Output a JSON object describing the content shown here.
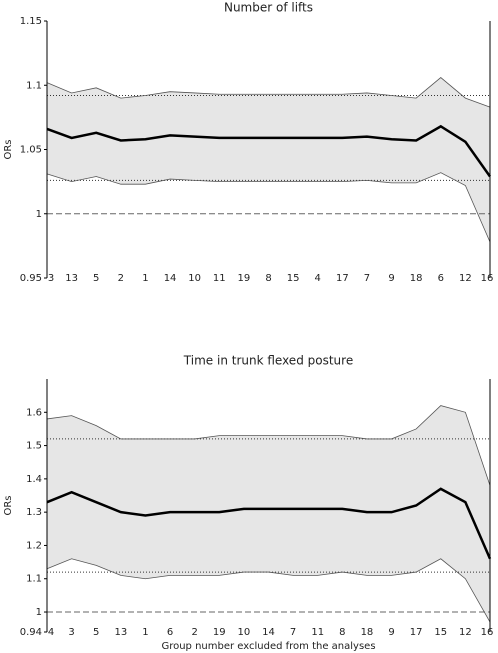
{
  "chart_data": [
    {
      "type": "line",
      "title": "Number of lifts",
      "ylabel": "ORs",
      "categories": [
        "3",
        "13",
        "5",
        "2",
        "1",
        "14",
        "10",
        "11",
        "19",
        "8",
        "15",
        "4",
        "17",
        "7",
        "9",
        "18",
        "6",
        "12",
        "16"
      ],
      "values": [
        1.066,
        1.059,
        1.063,
        1.057,
        1.058,
        1.061,
        1.06,
        1.059,
        1.059,
        1.059,
        1.059,
        1.059,
        1.059,
        1.06,
        1.058,
        1.057,
        1.068,
        1.056,
        1.029
      ],
      "ci_upper": [
        1.102,
        1.094,
        1.098,
        1.09,
        1.092,
        1.095,
        1.094,
        1.093,
        1.093,
        1.093,
        1.093,
        1.093,
        1.093,
        1.094,
        1.092,
        1.09,
        1.106,
        1.09,
        1.083
      ],
      "ci_lower": [
        1.031,
        1.025,
        1.029,
        1.023,
        1.023,
        1.027,
        1.026,
        1.025,
        1.025,
        1.025,
        1.025,
        1.025,
        1.025,
        1.026,
        1.024,
        1.024,
        1.032,
        1.022,
        0.978
      ],
      "color": "#000000",
      "band_color": "#e6e6e6",
      "hlines": [
        {
          "value": 1,
          "style": "dashed"
        },
        {
          "value": 1.092,
          "style": "dotted"
        },
        {
          "value": 1.026,
          "style": "dotted"
        }
      ],
      "ylim": [
        0.95,
        1.15
      ],
      "yticks": [
        0.95,
        1,
        1.05,
        1.1,
        1.15
      ]
    },
    {
      "type": "line",
      "title": "Time in trunk flexed posture",
      "ylabel": "ORs",
      "xlabel": "Group number excluded from the analyses",
      "categories": [
        "4",
        "3",
        "5",
        "13",
        "1",
        "6",
        "2",
        "19",
        "10",
        "14",
        "7",
        "11",
        "8",
        "18",
        "9",
        "17",
        "15",
        "12",
        "16"
      ],
      "values": [
        1.33,
        1.36,
        1.33,
        1.3,
        1.29,
        1.3,
        1.3,
        1.3,
        1.31,
        1.31,
        1.31,
        1.31,
        1.31,
        1.3,
        1.3,
        1.32,
        1.37,
        1.33,
        1.16
      ],
      "ci_upper": [
        1.58,
        1.59,
        1.56,
        1.52,
        1.52,
        1.52,
        1.52,
        1.53,
        1.53,
        1.53,
        1.53,
        1.53,
        1.53,
        1.52,
        1.52,
        1.55,
        1.62,
        1.6,
        1.38
      ],
      "ci_lower": [
        1.13,
        1.16,
        1.14,
        1.11,
        1.1,
        1.11,
        1.11,
        1.11,
        1.12,
        1.12,
        1.11,
        1.11,
        1.12,
        1.11,
        1.11,
        1.12,
        1.16,
        1.1,
        0.97
      ],
      "color": "#000000",
      "band_color": "#e6e6e6",
      "hlines": [
        {
          "value": 1,
          "style": "dashed"
        },
        {
          "value": 1.52,
          "style": "dotted"
        },
        {
          "value": 1.12,
          "style": "dotted"
        }
      ],
      "ylim": [
        0.94,
        1.7
      ],
      "yticks": [
        0.94,
        1,
        1.1,
        1.2,
        1.3,
        1.4,
        1.5,
        1.6
      ]
    }
  ]
}
